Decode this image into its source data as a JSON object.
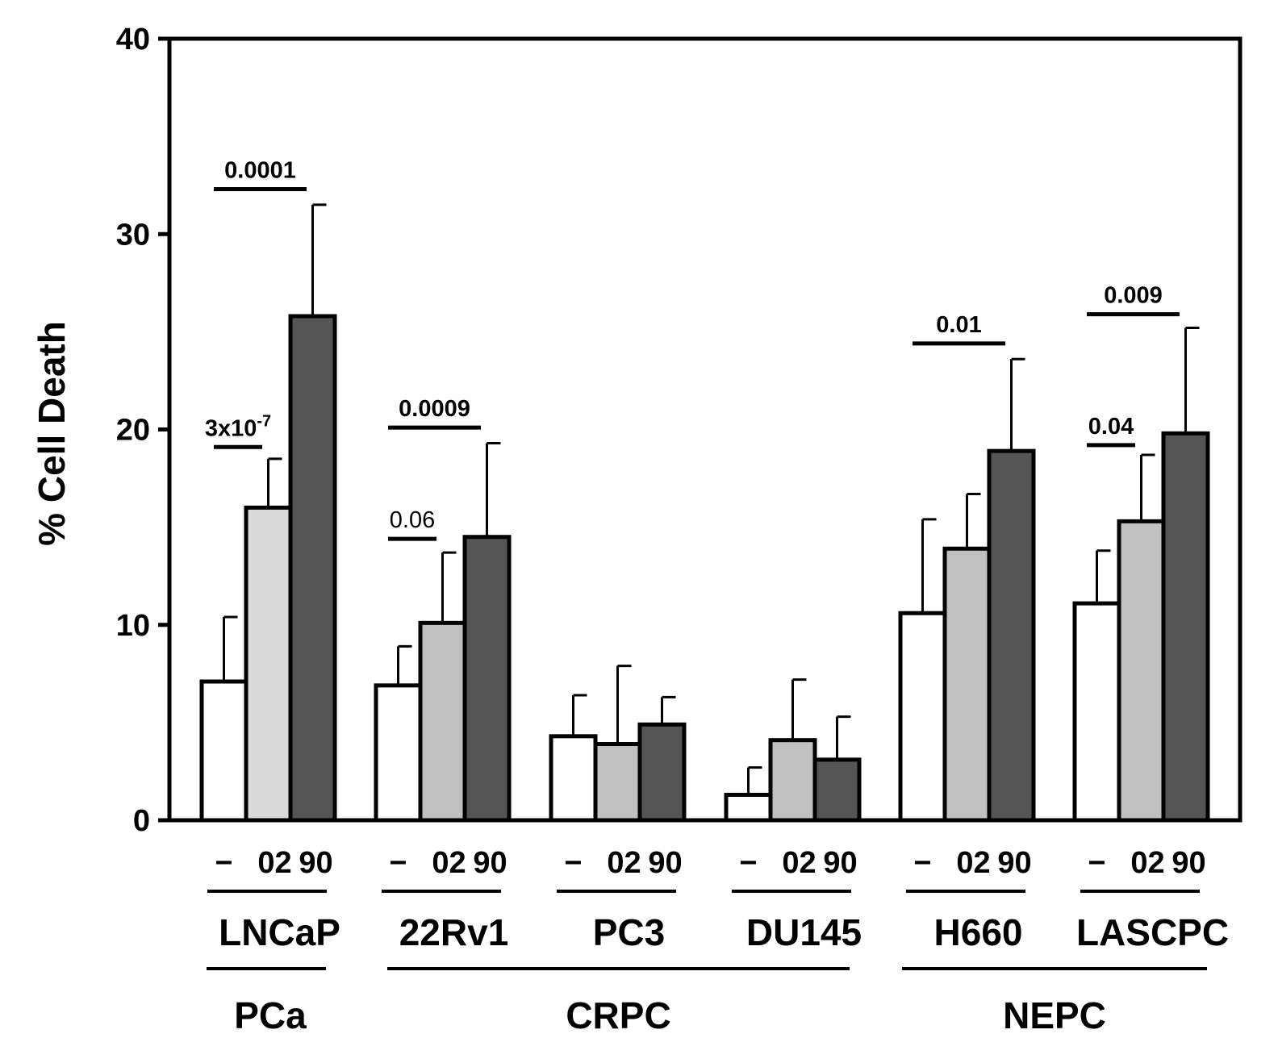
{
  "chart_data": {
    "type": "bar",
    "ylabel": "% Cell Death",
    "ylim": [
      0,
      40
    ],
    "yticks": [
      0,
      10,
      20,
      30,
      40
    ],
    "grid": false,
    "treatment_labels": [
      "−",
      "02",
      "90"
    ],
    "series_colors": [
      "#ffffff",
      "#c0c0c0",
      "#555555"
    ],
    "first_series_color_override": "#d9d9d9",
    "cell_lines": [
      {
        "name": "LNCaP",
        "values": [
          7.1,
          16.0,
          25.8
        ],
        "errors": [
          3.3,
          2.5,
          5.7
        ]
      },
      {
        "name": "22Rv1",
        "values": [
          6.9,
          10.1,
          14.5
        ],
        "errors": [
          2.0,
          3.6,
          4.8
        ]
      },
      {
        "name": "PC3",
        "values": [
          4.3,
          3.9,
          4.9
        ],
        "errors": [
          2.1,
          4.0,
          1.4
        ]
      },
      {
        "name": "DU145",
        "values": [
          1.3,
          4.1,
          3.1
        ],
        "errors": [
          1.4,
          3.1,
          2.2
        ]
      },
      {
        "name": "H660",
        "values": [
          10.6,
          13.9,
          18.9
        ],
        "errors": [
          4.8,
          2.8,
          4.7
        ]
      },
      {
        "name": "LASCPC",
        "values": [
          11.1,
          15.3,
          19.8
        ],
        "errors": [
          2.7,
          3.4,
          5.4
        ]
      }
    ],
    "groups": [
      {
        "name": "PCa",
        "cell_lines": [
          "LNCaP"
        ]
      },
      {
        "name": "CRPC",
        "cell_lines": [
          "22Rv1",
          "PC3",
          "DU145"
        ]
      },
      {
        "name": "NEPC",
        "cell_lines": [
          "H660",
          "LASCPC"
        ]
      }
    ],
    "annotations": [
      {
        "cell_line": "LNCaP",
        "from": 0,
        "to": 2,
        "text": "0.0001",
        "y": 32.3,
        "bold": true
      },
      {
        "cell_line": "LNCaP",
        "from": 0,
        "to": 1,
        "text": "3x10",
        "superscript": "-7",
        "y": 19.1,
        "bold": true
      },
      {
        "cell_line": "22Rv1",
        "from": 0,
        "to": 2,
        "text": "0.0009",
        "y": 20.1,
        "bold": true
      },
      {
        "cell_line": "22Rv1",
        "from": 0,
        "to": 1,
        "text": "0.06",
        "y": 14.4,
        "bold": false
      },
      {
        "cell_line": "H660",
        "from": 0,
        "to": 2,
        "text": "0.01",
        "y": 24.4,
        "bold": true
      },
      {
        "cell_line": "LASCPC",
        "from": 0,
        "to": 2,
        "text": "0.009",
        "y": 25.9,
        "bold": true
      },
      {
        "cell_line": "LASCPC",
        "from": 0,
        "to": 1,
        "text": "0.04",
        "y": 19.2,
        "bold": true
      }
    ]
  }
}
